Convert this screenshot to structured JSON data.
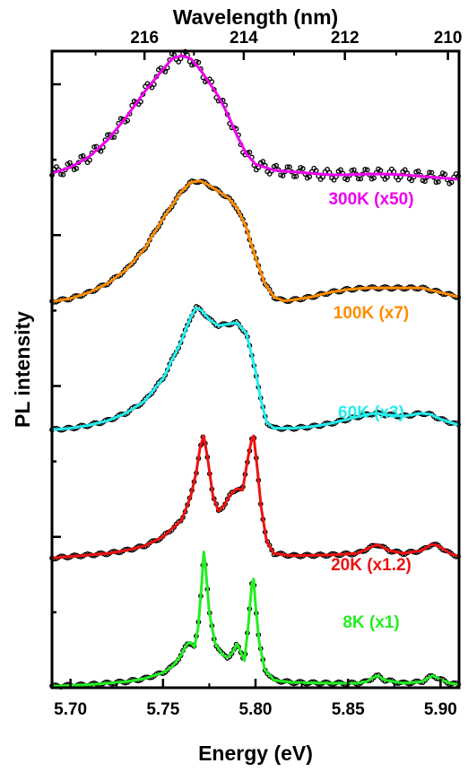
{
  "chart_data": {
    "type": "line",
    "xlabel": "Energy (eV)",
    "ylabel": "PL intensity",
    "top_axis_label": "Wavelength (nm)",
    "xlim": [
      5.69,
      5.91
    ],
    "x_ticks": [
      5.7,
      5.75,
      5.8,
      5.85,
      5.9
    ],
    "x_tick_labels": [
      "5.70",
      "5.75",
      "5.80",
      "5.85",
      "5.90"
    ],
    "top_ticks_nm": [
      216,
      214,
      212,
      210
    ],
    "top_tick_labels": [
      "216",
      "214",
      "212",
      "210"
    ],
    "conversion_constant_eV_nm": 1239.84,
    "ylim": [
      0,
      4.22
    ],
    "series": [
      {
        "name": "8K (x1)",
        "label": "8K (x1)",
        "color": "#22ee22",
        "offset": 0,
        "fit": [
          [
            5.69,
            0.01
          ],
          [
            5.7,
            0.015
          ],
          [
            5.71,
            0.02
          ],
          [
            5.72,
            0.03
          ],
          [
            5.73,
            0.04
          ],
          [
            5.74,
            0.06
          ],
          [
            5.75,
            0.1
          ],
          [
            5.755,
            0.14
          ],
          [
            5.76,
            0.22
          ],
          [
            5.763,
            0.29
          ],
          [
            5.765,
            0.3
          ],
          [
            5.767,
            0.27
          ],
          [
            5.769,
            0.4
          ],
          [
            5.771,
            0.7
          ],
          [
            5.772,
            0.9
          ],
          [
            5.773,
            0.8
          ],
          [
            5.775,
            0.5
          ],
          [
            5.778,
            0.3
          ],
          [
            5.782,
            0.22
          ],
          [
            5.785,
            0.2
          ],
          [
            5.788,
            0.24
          ],
          [
            5.79,
            0.29
          ],
          [
            5.792,
            0.24
          ],
          [
            5.794,
            0.18
          ],
          [
            5.796,
            0.4
          ],
          [
            5.798,
            0.69
          ],
          [
            5.799,
            0.72
          ],
          [
            5.8,
            0.55
          ],
          [
            5.802,
            0.3
          ],
          [
            5.805,
            0.12
          ],
          [
            5.81,
            0.05
          ],
          [
            5.82,
            0.035
          ],
          [
            5.84,
            0.03
          ],
          [
            5.855,
            0.03
          ],
          [
            5.86,
            0.04
          ],
          [
            5.864,
            0.07
          ],
          [
            5.866,
            0.08
          ],
          [
            5.87,
            0.05
          ],
          [
            5.88,
            0.03
          ],
          [
            5.89,
            0.04
          ],
          [
            5.894,
            0.07
          ],
          [
            5.896,
            0.08
          ],
          [
            5.899,
            0.06
          ],
          [
            5.905,
            0.03
          ],
          [
            5.91,
            0.02
          ]
        ]
      },
      {
        "name": "20K (x1.2)",
        "label": "20K (x1.2)",
        "color": "#ee1111",
        "offset": 0.85,
        "fit": [
          [
            5.69,
            0.01
          ],
          [
            5.7,
            0.02
          ],
          [
            5.71,
            0.03
          ],
          [
            5.72,
            0.04
          ],
          [
            5.73,
            0.06
          ],
          [
            5.74,
            0.09
          ],
          [
            5.75,
            0.15
          ],
          [
            5.76,
            0.26
          ],
          [
            5.765,
            0.42
          ],
          [
            5.768,
            0.58
          ],
          [
            5.77,
            0.74
          ],
          [
            5.772,
            0.82
          ],
          [
            5.774,
            0.68
          ],
          [
            5.777,
            0.42
          ],
          [
            5.78,
            0.32
          ],
          [
            5.783,
            0.36
          ],
          [
            5.787,
            0.44
          ],
          [
            5.79,
            0.47
          ],
          [
            5.793,
            0.46
          ],
          [
            5.796,
            0.68
          ],
          [
            5.798,
            0.8
          ],
          [
            5.799,
            0.82
          ],
          [
            5.801,
            0.6
          ],
          [
            5.803,
            0.35
          ],
          [
            5.806,
            0.12
          ],
          [
            5.81,
            0.04
          ],
          [
            5.82,
            0.025
          ],
          [
            5.84,
            0.03
          ],
          [
            5.855,
            0.04
          ],
          [
            5.862,
            0.08
          ],
          [
            5.866,
            0.1
          ],
          [
            5.872,
            0.06
          ],
          [
            5.88,
            0.04
          ],
          [
            5.89,
            0.06
          ],
          [
            5.895,
            0.1
          ],
          [
            5.899,
            0.09
          ],
          [
            5.905,
            0.04
          ],
          [
            5.91,
            0.02
          ]
        ]
      },
      {
        "name": "60K (x3)",
        "label": "60K (x3)",
        "color": "#22eeee",
        "offset": 1.7,
        "fit": [
          [
            5.69,
            0.01
          ],
          [
            5.7,
            0.02
          ],
          [
            5.71,
            0.04
          ],
          [
            5.72,
            0.07
          ],
          [
            5.73,
            0.12
          ],
          [
            5.74,
            0.2
          ],
          [
            5.75,
            0.35
          ],
          [
            5.76,
            0.6
          ],
          [
            5.765,
            0.76
          ],
          [
            5.768,
            0.82
          ],
          [
            5.771,
            0.8
          ],
          [
            5.775,
            0.74
          ],
          [
            5.78,
            0.7
          ],
          [
            5.785,
            0.71
          ],
          [
            5.79,
            0.72
          ],
          [
            5.795,
            0.65
          ],
          [
            5.8,
            0.4
          ],
          [
            5.803,
            0.2
          ],
          [
            5.806,
            0.06
          ],
          [
            5.81,
            0.02
          ],
          [
            5.82,
            0.02
          ],
          [
            5.83,
            0.03
          ],
          [
            5.84,
            0.05
          ],
          [
            5.85,
            0.08
          ],
          [
            5.86,
            0.11
          ],
          [
            5.865,
            0.12
          ],
          [
            5.87,
            0.11
          ],
          [
            5.88,
            0.1
          ],
          [
            5.89,
            0.12
          ],
          [
            5.895,
            0.11
          ],
          [
            5.9,
            0.08
          ],
          [
            5.91,
            0.04
          ]
        ]
      },
      {
        "name": "100K (x7)",
        "label": "100K (x7)",
        "color": "#ff8c00",
        "offset": 2.55,
        "fit": [
          [
            5.69,
            0.01
          ],
          [
            5.7,
            0.03
          ],
          [
            5.71,
            0.07
          ],
          [
            5.72,
            0.13
          ],
          [
            5.73,
            0.22
          ],
          [
            5.74,
            0.36
          ],
          [
            5.75,
            0.56
          ],
          [
            5.76,
            0.74
          ],
          [
            5.765,
            0.8
          ],
          [
            5.77,
            0.81
          ],
          [
            5.775,
            0.78
          ],
          [
            5.78,
            0.74
          ],
          [
            5.785,
            0.7
          ],
          [
            5.79,
            0.63
          ],
          [
            5.795,
            0.5
          ],
          [
            5.8,
            0.3
          ],
          [
            5.805,
            0.13
          ],
          [
            5.81,
            0.04
          ],
          [
            5.815,
            0.015
          ],
          [
            5.82,
            0.02
          ],
          [
            5.83,
            0.04
          ],
          [
            5.84,
            0.07
          ],
          [
            5.85,
            0.09
          ],
          [
            5.86,
            0.1
          ],
          [
            5.87,
            0.1
          ],
          [
            5.88,
            0.1
          ],
          [
            5.89,
            0.1
          ],
          [
            5.9,
            0.07
          ],
          [
            5.91,
            0.04
          ]
        ]
      },
      {
        "name": "300K (x50)",
        "label": "300K (x50)",
        "color": "#ee00ee",
        "offset": 3.4,
        "fit": [
          [
            5.69,
            0.01
          ],
          [
            5.7,
            0.05
          ],
          [
            5.71,
            0.12
          ],
          [
            5.72,
            0.23
          ],
          [
            5.73,
            0.38
          ],
          [
            5.74,
            0.55
          ],
          [
            5.75,
            0.7
          ],
          [
            5.755,
            0.77
          ],
          [
            5.76,
            0.79
          ],
          [
            5.765,
            0.77
          ],
          [
            5.77,
            0.7
          ],
          [
            5.775,
            0.61
          ],
          [
            5.78,
            0.52
          ],
          [
            5.785,
            0.4
          ],
          [
            5.79,
            0.26
          ],
          [
            5.795,
            0.14
          ],
          [
            5.8,
            0.07
          ],
          [
            5.81,
            0.03
          ],
          [
            5.82,
            0.02
          ],
          [
            5.83,
            0.01
          ],
          [
            5.84,
            0.0
          ],
          [
            5.85,
            0.0
          ],
          [
            5.86,
            0.005
          ],
          [
            5.87,
            0.005
          ],
          [
            5.88,
            0.0
          ],
          [
            5.89,
            -0.01
          ],
          [
            5.9,
            -0.02
          ],
          [
            5.91,
            -0.03
          ]
        ]
      }
    ],
    "data_color": "#000000"
  }
}
